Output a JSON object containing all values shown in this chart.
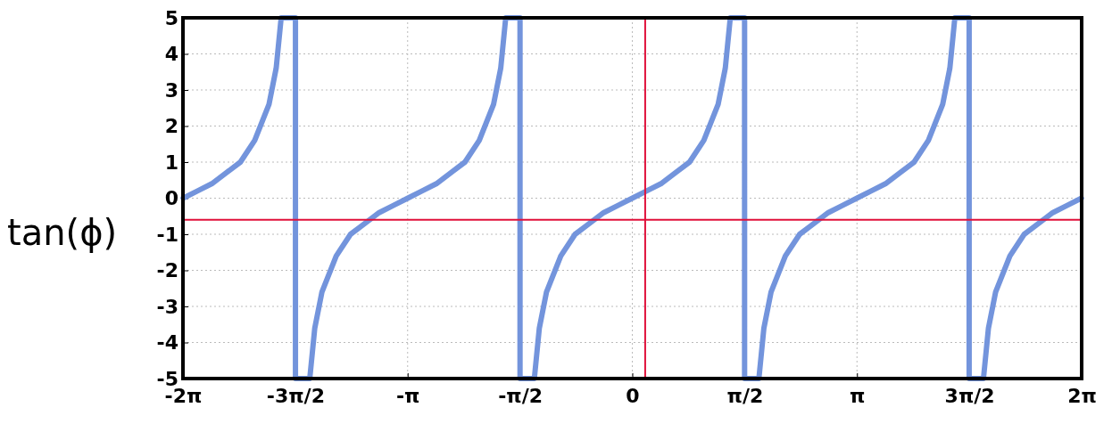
{
  "chart_data": {
    "type": "line",
    "ylabel": "tan(ϕ)",
    "x": [
      -6.28,
      -6.08,
      -5.88,
      -5.68,
      -5.48,
      -5.28,
      -5.08,
      -4.98,
      -4.91,
      -4.71,
      -4.71,
      -4.51,
      -4.44,
      -4.34,
      -4.14,
      -3.94,
      -3.74,
      -3.54,
      -3.34,
      -3.14,
      -2.94,
      -2.74,
      -2.54,
      -2.34,
      -2.14,
      -1.94,
      -1.84,
      -1.77,
      -1.57,
      -1.57,
      -1.37,
      -1.3,
      -1.2,
      -1.0,
      -0.8,
      -0.6,
      -0.4,
      -0.2,
      0,
      0.2,
      0.4,
      0.6,
      0.8,
      1.0,
      1.2,
      1.3,
      1.37,
      1.57,
      1.57,
      1.77,
      1.84,
      1.94,
      2.14,
      2.34,
      2.54,
      2.74,
      2.94,
      3.14,
      3.34,
      3.54,
      3.74,
      3.94,
      4.14,
      4.34,
      4.44,
      4.51,
      4.71,
      4.71,
      4.91,
      4.98,
      5.08,
      5.28,
      5.48,
      5.68,
      5.88,
      6.08,
      6.28
    ],
    "series": [
      {
        "color": "#7394dc",
        "values": [
          0,
          0.2,
          0.4,
          0.7,
          1.0,
          1.6,
          2.6,
          3.6,
          5,
          5,
          -5,
          -5,
          -3.6,
          -2.6,
          -1.6,
          -1.0,
          -0.7,
          -0.4,
          -0.2,
          0,
          0.2,
          0.4,
          0.7,
          1.0,
          1.6,
          2.6,
          3.6,
          5,
          5,
          -5,
          -5,
          -3.6,
          -2.6,
          -1.6,
          -1.0,
          -0.7,
          -0.4,
          -0.2,
          0,
          0.2,
          0.4,
          0.7,
          1.0,
          1.6,
          2.6,
          3.6,
          5,
          5,
          -5,
          -5,
          -3.6,
          -2.6,
          -1.6,
          -1.0,
          -0.7,
          -0.4,
          -0.2,
          0,
          0.2,
          0.4,
          0.7,
          1.0,
          1.6,
          2.6,
          3.6,
          5,
          5,
          -5,
          -5,
          -3.6,
          -2.6,
          -1.6,
          -1.0,
          -0.7,
          -0.4,
          -0.2,
          0
        ]
      }
    ],
    "xlim": [
      -6.2832,
      6.2832
    ],
    "xticks": [
      {
        "value": -6.2832,
        "label": "-2π"
      },
      {
        "value": -4.7124,
        "label": "-3π/2"
      },
      {
        "value": -3.1416,
        "label": "-π"
      },
      {
        "value": -1.5708,
        "label": "-π/2"
      },
      0,
      {
        "value": 1.5708,
        "label": "π/2"
      },
      {
        "value": 3.1416,
        "label": "π"
      },
      {
        "value": 4.7124,
        "label": "3π/2"
      },
      {
        "value": 6.2832,
        "label": "2π"
      }
    ],
    "ylim": [
      -5,
      5
    ],
    "yticks": [
      -5,
      -4,
      -3,
      -2,
      -1,
      0,
      1,
      2,
      3,
      4,
      5
    ],
    "grid": true,
    "line_style": "solid",
    "marker": "none",
    "ref_lines": [
      {
        "axis": "y",
        "value": -0.6,
        "color": "#e0103a"
      },
      {
        "axis": "x",
        "value": 0.18,
        "color": "#e0103a"
      }
    ]
  }
}
